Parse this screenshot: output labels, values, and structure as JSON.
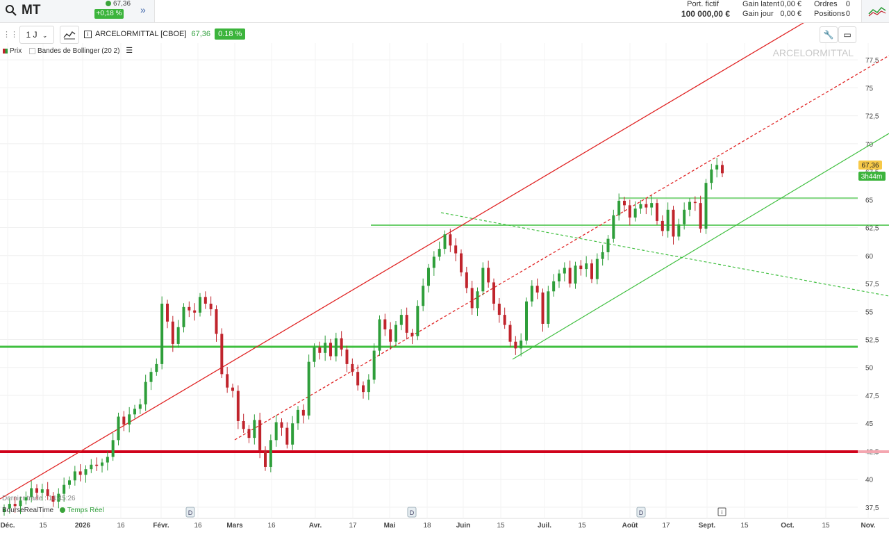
{
  "header": {
    "symbol": "MT",
    "last_price": "67,36",
    "change_pct": "+0,18 %",
    "portfolio_label": "Port. fictif",
    "portfolio_value": "100 000,00 €",
    "gain_latent_label": "Gain latent",
    "gain_latent_value": "0,00 €",
    "gain_jour_label": "Gain jour",
    "gain_jour_value": "0,00 €",
    "orders_label": "Ordres",
    "orders_value": "0",
    "positions_label": "Positions",
    "positions_value": "0"
  },
  "toolbar": {
    "interval": "1 J",
    "instrument": "ARCELORMITTAL [CBOE]",
    "instrument_price": "67,36",
    "instrument_change": "0.18 %"
  },
  "legend": {
    "price_label": "Prix",
    "bollinger_label": "Bandes de Bollinger (20 2)"
  },
  "watermark": "ARCELORMITTAL",
  "price_tag": "67,36",
  "time_tag": "3h44m",
  "footer": {
    "last_trade": "Dernier trade : 14:45:26",
    "source": "BourseRealTime",
    "realtime": "Temps Réel"
  },
  "colors": {
    "up": "#2e9e3a",
    "down": "#c0242c",
    "support": "#3fbf3f",
    "resistance": "#d0021b"
  },
  "chart_data": {
    "type": "candlestick",
    "ylim": [
      36.5,
      79
    ],
    "y_ticks": [
      37.5,
      40,
      42.5,
      45,
      47.5,
      50,
      52.5,
      55,
      57.5,
      60,
      62.5,
      65,
      67.5,
      70,
      72.5,
      75,
      77.5
    ],
    "y_tick_labels": [
      "37,5",
      "40",
      "42,5",
      "45",
      "47,5",
      "50",
      "52,5",
      "55",
      "57,5",
      "60",
      "62,5",
      "65",
      "67,5",
      "70",
      "72,5",
      "75",
      "77,5"
    ],
    "x_tick_labels": [
      "Déc.",
      "15",
      "2026",
      "16",
      "Févr.",
      "16",
      "Mars",
      "16",
      "Avr.",
      "17",
      "Mai",
      "18",
      "Juin",
      "15",
      "Juil.",
      "15",
      "Août",
      "17",
      "Sept.",
      "15",
      "Oct.",
      "15",
      "Nov."
    ],
    "last_close": 67.36,
    "close": [
      37.4,
      37.8,
      37.6,
      38.1,
      38.4,
      39.2,
      38.8,
      39.1,
      38.5,
      38.0,
      38.7,
      39.5,
      39.9,
      40.7,
      40.4,
      40.9,
      41.3,
      41.2,
      41.5,
      42.0,
      43.5,
      45.6,
      44.9,
      45.8,
      46.3,
      46.7,
      48.7,
      49.6,
      50.3,
      55.7,
      54.1,
      52.1,
      53.6,
      55.4,
      55.1,
      54.9,
      56.3,
      55.7,
      55.2,
      53.0,
      49.4,
      48.2,
      47.9,
      45.2,
      44.5,
      43.7,
      45.3,
      42.6,
      41.1,
      43.5,
      45.1,
      44.6,
      43.1,
      45.0,
      46.2,
      45.7,
      50.5,
      51.8,
      51.3,
      52.2,
      51.0,
      52.6,
      51.6,
      50.3,
      49.6,
      48.4,
      47.8,
      48.9,
      51.5,
      54.3,
      53.4,
      52.3,
      53.8,
      54.7,
      53.1,
      52.8,
      55.5,
      57.3,
      58.9,
      59.9,
      60.6,
      61.9,
      60.9,
      60.2,
      58.5,
      57.1,
      55.3,
      56.8,
      58.9,
      57.6,
      55.7,
      54.7,
      53.8,
      52.3,
      51.7,
      52.4,
      55.9,
      57.3,
      56.7,
      53.9,
      56.8,
      57.7,
      58.4,
      58.9,
      57.5,
      59.1,
      58.8,
      59.3,
      57.9,
      59.7,
      60.3,
      61.5,
      63.6,
      64.9,
      64.5,
      63.4,
      64.2,
      64.6,
      64.3,
      64.7,
      63.1,
      62.2,
      64.1,
      61.7,
      62.8,
      64.1,
      64.8,
      64.7,
      62.4,
      66.5,
      67.7,
      68.1,
      67.36
    ]
  }
}
